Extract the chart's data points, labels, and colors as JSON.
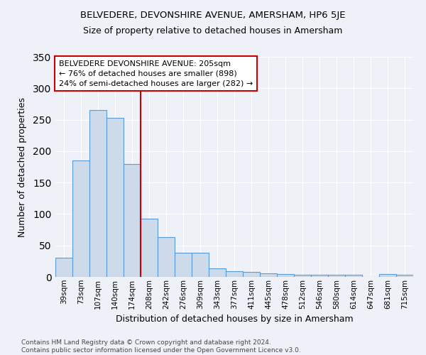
{
  "title": "BELVEDERE, DEVONSHIRE AVENUE, AMERSHAM, HP6 5JE",
  "subtitle": "Size of property relative to detached houses in Amersham",
  "xlabel": "Distribution of detached houses by size in Amersham",
  "ylabel": "Number of detached properties",
  "bar_labels": [
    "39sqm",
    "73sqm",
    "107sqm",
    "140sqm",
    "174sqm",
    "208sqm",
    "242sqm",
    "276sqm",
    "309sqm",
    "343sqm",
    "377sqm",
    "411sqm",
    "445sqm",
    "478sqm",
    "512sqm",
    "546sqm",
    "580sqm",
    "614sqm",
    "647sqm",
    "681sqm",
    "715sqm"
  ],
  "bar_values": [
    30,
    185,
    265,
    253,
    180,
    93,
    63,
    38,
    38,
    13,
    9,
    8,
    6,
    5,
    3,
    3,
    3,
    3,
    0,
    4,
    3
  ],
  "bar_color": "#ccdaea",
  "bar_edge_color": "#5b9bd5",
  "vline_x": 4.5,
  "vline_color": "#cc0000",
  "annotation_text": "BELVEDERE DEVONSHIRE AVENUE: 205sqm\n← 76% of detached houses are smaller (898)\n24% of semi-detached houses are larger (282) →",
  "annotation_box_color": "white",
  "annotation_box_edge": "#cc0000",
  "ylim": [
    0,
    350
  ],
  "yticks": [
    0,
    50,
    100,
    150,
    200,
    250,
    300,
    350
  ],
  "footer": "Contains HM Land Registry data © Crown copyright and database right 2024.\nContains public sector information licensed under the Open Government Licence v3.0.",
  "bg_color": "#eef2f8",
  "grid_color": "white"
}
